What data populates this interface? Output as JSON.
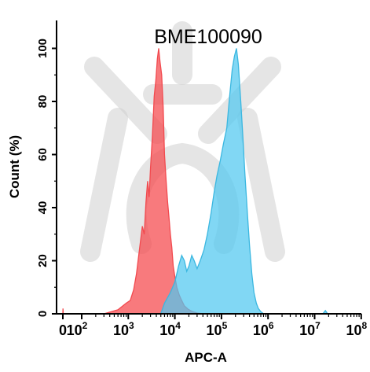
{
  "chart_data": {
    "type": "area",
    "title": "BME100090",
    "xlabel": "APC-A",
    "ylabel": "Count  (%)",
    "x_scale": "log",
    "xlim": [
      0,
      100000000
    ],
    "ylim": [
      0,
      110
    ],
    "yticks": [
      0,
      20,
      40,
      60,
      80,
      100
    ],
    "xticks": [
      {
        "base": "0",
        "exp": ""
      },
      {
        "base": "10",
        "exp": "2"
      },
      {
        "base": "10",
        "exp": "3"
      },
      {
        "base": "10",
        "exp": "4"
      },
      {
        "base": "10",
        "exp": "5"
      },
      {
        "base": "10",
        "exp": "6"
      },
      {
        "base": "10",
        "exp": "7"
      },
      {
        "base": "10",
        "exp": "8"
      }
    ],
    "grid": false,
    "legend": "none",
    "series": [
      {
        "color": "#f24a4f",
        "fill": "rgba(245,70,75,0.72)",
        "points": [
          [
            0,
            0
          ],
          [
            1,
            2
          ],
          [
            2,
            0
          ],
          [
            300,
            0
          ],
          [
            600,
            1.5
          ],
          [
            900,
            4
          ],
          [
            1100,
            5
          ],
          [
            1300,
            9
          ],
          [
            1500,
            15
          ],
          [
            1700,
            23
          ],
          [
            2000,
            33
          ],
          [
            2200,
            30
          ],
          [
            2400,
            42
          ],
          [
            2600,
            50
          ],
          [
            2800,
            44
          ],
          [
            3000,
            55
          ],
          [
            3300,
            67
          ],
          [
            3600,
            82
          ],
          [
            3900,
            88
          ],
          [
            4200,
            96
          ],
          [
            4500,
            100
          ],
          [
            4800,
            95
          ],
          [
            5200,
            90
          ],
          [
            5600,
            78
          ],
          [
            6000,
            60
          ],
          [
            6500,
            50
          ],
          [
            7000,
            42
          ],
          [
            7500,
            36
          ],
          [
            8000,
            30
          ],
          [
            8600,
            25
          ],
          [
            9200,
            18
          ],
          [
            10000,
            14
          ],
          [
            11000,
            10
          ],
          [
            12500,
            7
          ],
          [
            14000,
            5
          ],
          [
            16000,
            3
          ],
          [
            19000,
            1.8
          ],
          [
            24000,
            0.8
          ],
          [
            30000,
            0.3
          ],
          [
            40000,
            0
          ]
        ]
      },
      {
        "color": "#3bb7e0",
        "fill": "rgba(80,200,240,0.72)",
        "points": [
          [
            5000,
            0
          ],
          [
            6000,
            4
          ],
          [
            8000,
            8
          ],
          [
            10000,
            12
          ],
          [
            12000,
            18
          ],
          [
            14000,
            22
          ],
          [
            16000,
            20
          ],
          [
            18000,
            16
          ],
          [
            20000,
            18
          ],
          [
            23000,
            22
          ],
          [
            26000,
            20
          ],
          [
            30000,
            17
          ],
          [
            35000,
            20
          ],
          [
            42000,
            24
          ],
          [
            50000,
            30
          ],
          [
            60000,
            38
          ],
          [
            70000,
            46
          ],
          [
            80000,
            52
          ],
          [
            95000,
            58
          ],
          [
            110000,
            64
          ],
          [
            130000,
            70
          ],
          [
            150000,
            82
          ],
          [
            170000,
            92
          ],
          [
            190000,
            97
          ],
          [
            210000,
            100
          ],
          [
            230000,
            94
          ],
          [
            260000,
            80
          ],
          [
            290000,
            66
          ],
          [
            320000,
            52
          ],
          [
            360000,
            38
          ],
          [
            400000,
            26
          ],
          [
            450000,
            15
          ],
          [
            500000,
            8
          ],
          [
            560000,
            4
          ],
          [
            620000,
            2
          ],
          [
            700000,
            0.8
          ],
          [
            800000,
            0
          ]
        ]
      },
      {
        "color": "#3bb7e0",
        "fill": "rgba(80,200,240,0.72)",
        "points": [
          [
            15000000,
            0
          ],
          [
            17000000,
            1.2
          ],
          [
            19000000,
            0
          ]
        ]
      }
    ]
  }
}
